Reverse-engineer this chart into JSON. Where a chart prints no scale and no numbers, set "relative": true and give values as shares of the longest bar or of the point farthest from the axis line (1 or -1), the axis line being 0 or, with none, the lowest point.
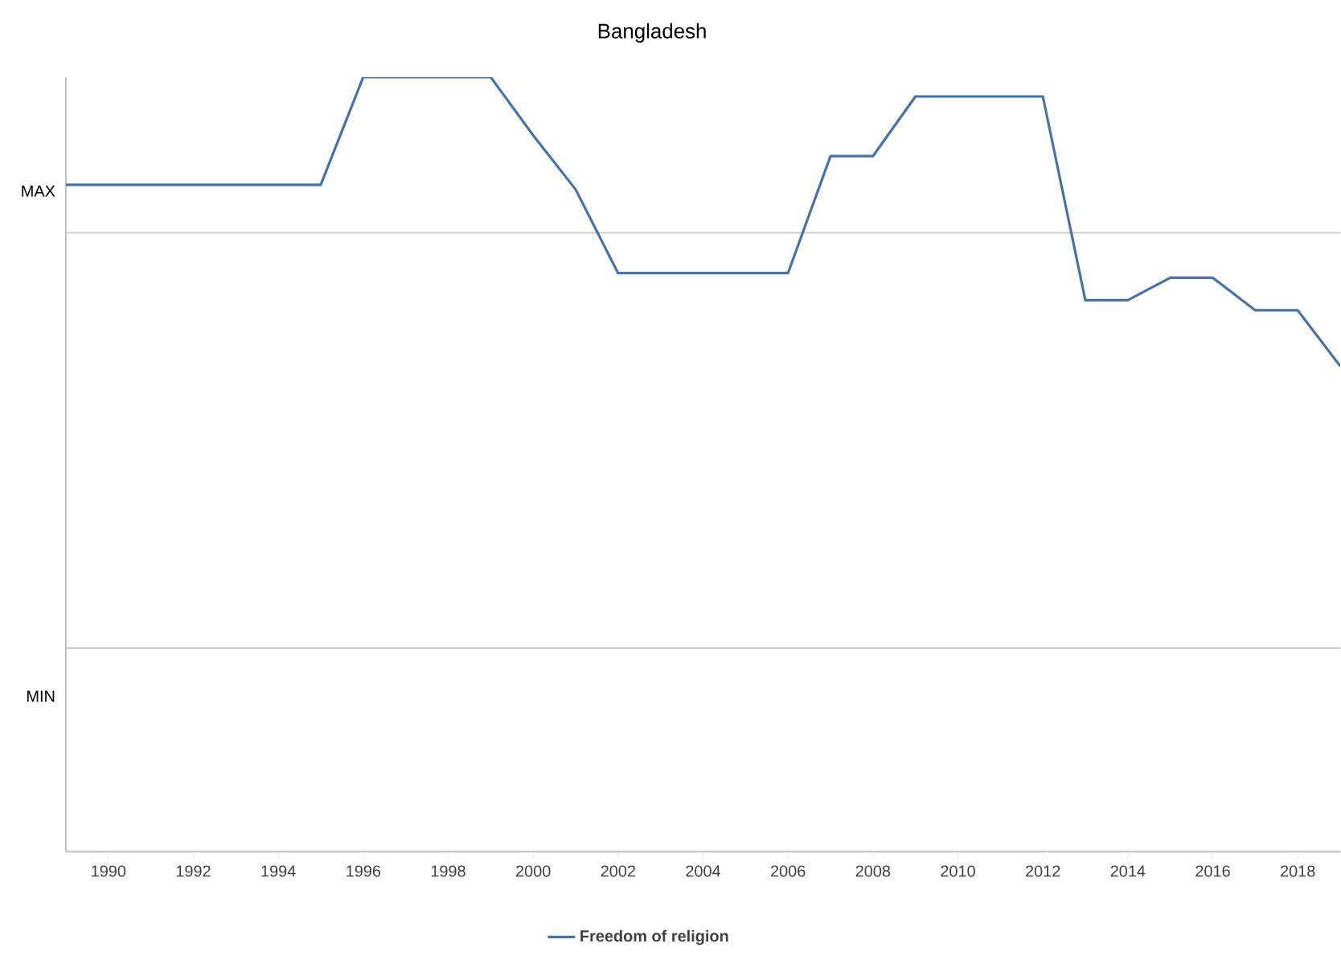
{
  "chart_data": {
    "type": "line",
    "title": "Bangladesh",
    "relative": true,
    "x": [
      1989,
      1990,
      1991,
      1992,
      1993,
      1994,
      1995,
      1996,
      1997,
      1998,
      1999,
      2000,
      2001,
      2002,
      2003,
      2004,
      2005,
      2006,
      2007,
      2008,
      2009,
      2010,
      2011,
      2012,
      2013,
      2014,
      2015,
      2016,
      2017,
      2018,
      2019
    ],
    "series": [
      {
        "name": "Freedom of religion",
        "color": "#4572a7",
        "values": [
          0.861,
          0.861,
          0.861,
          0.861,
          0.861,
          0.861,
          0.861,
          1,
          1,
          1,
          1,
          0.925,
          0.855,
          0.747,
          0.747,
          0.747,
          0.747,
          0.747,
          0.898,
          0.898,
          0.975,
          0.975,
          0.975,
          0.975,
          0.712,
          0.712,
          0.741,
          0.741,
          0.699,
          0.699,
          0.627
        ]
      }
    ],
    "xlim": [
      1989,
      2019
    ],
    "xticks": [
      1990,
      1992,
      1994,
      1996,
      1998,
      2000,
      2002,
      2004,
      2006,
      2008,
      2010,
      2012,
      2014,
      2016,
      2018
    ],
    "ref_lines": [
      {
        "axis": "y",
        "value": 0.799,
        "label": "MAX",
        "color": "#cccccc"
      },
      {
        "axis": "y",
        "value": 0.263,
        "label": "MIN",
        "color": "#cccccc"
      }
    ],
    "legend": "bottom",
    "grid": false,
    "marker": "none",
    "line_style": "solid"
  }
}
